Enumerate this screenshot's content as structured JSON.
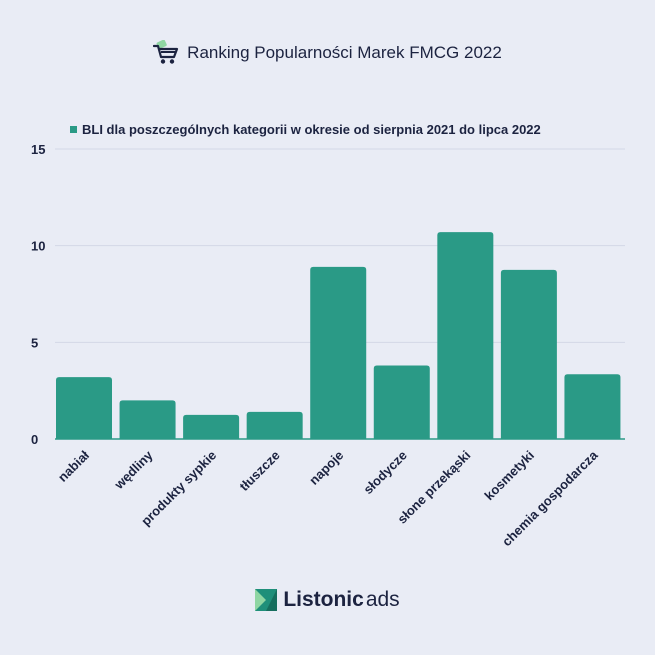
{
  "header": {
    "title": "Ranking Popularności Marek FMCG 2022",
    "icon": "shopping-cart-icon"
  },
  "footer": {
    "brand_main": "Listonic",
    "brand_sub": "ads",
    "icon": "listonic-logo-icon"
  },
  "colors": {
    "background": "#e9ecf5",
    "bar": "#2a9a86",
    "text": "#1c2340",
    "grid": "#d3d7e6"
  },
  "chart_data": {
    "type": "bar",
    "legend": "BLI dla poszczególnych kategorii w okresie od sierpnia 2021 do lipca 2022",
    "legend_position": "top",
    "categories": [
      "nabiał",
      "wędliny",
      "produkty sypkie",
      "tłuszcze",
      "napoje",
      "słodycze",
      "słone przekąski",
      "kosmetyki",
      "chemia gospodarcza"
    ],
    "series": [
      {
        "name": "BLI dla poszczególnych kategorii w okresie od sierpnia 2021 do lipca 2022",
        "values": [
          3.2,
          2.0,
          1.25,
          1.4,
          8.9,
          3.8,
          10.7,
          8.75,
          3.35
        ]
      }
    ],
    "ylim": [
      0,
      15
    ],
    "yticks": [
      "0",
      "5",
      "10",
      "15"
    ],
    "grid": true
  }
}
